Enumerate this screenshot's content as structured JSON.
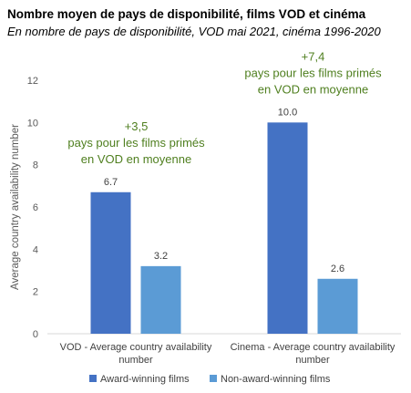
{
  "header": {
    "title": "Nombre moyen de pays de disponibilité, films VOD et cinéma",
    "subtitle": "En nombre de pays de disponibilité, VOD mai 2021, cinéma 1996-2020"
  },
  "chart_data": {
    "type": "bar",
    "categories": [
      [
        "VOD - Average country availability",
        "number"
      ],
      [
        "Cinema - Average country availability",
        "number"
      ]
    ],
    "series": [
      {
        "name": "Award-winning films",
        "values": [
          6.7,
          10.0
        ],
        "labels": [
          "6.7",
          "10.0"
        ],
        "color": "#4472c4"
      },
      {
        "name": "Non-award-winning films",
        "values": [
          3.2,
          2.6
        ],
        "labels": [
          "3.2",
          "2.6"
        ],
        "color": "#5b9bd5"
      }
    ],
    "ylabel": "Average country availability number",
    "xlabel": "",
    "ylim": [
      0,
      12
    ],
    "yticks": [
      0,
      2,
      4,
      6,
      8,
      10,
      12
    ],
    "grid": false,
    "legend_position": "bottom",
    "annotations": [
      {
        "lines": [
          "+3,5",
          "pays pour les films primés",
          "en VOD en moyenne"
        ],
        "category": 0
      },
      {
        "lines": [
          "+7,4",
          "pays pour les films primés",
          "en VOD en moyenne"
        ],
        "category": 1
      }
    ],
    "annotation_color": "#4f7f1f"
  }
}
